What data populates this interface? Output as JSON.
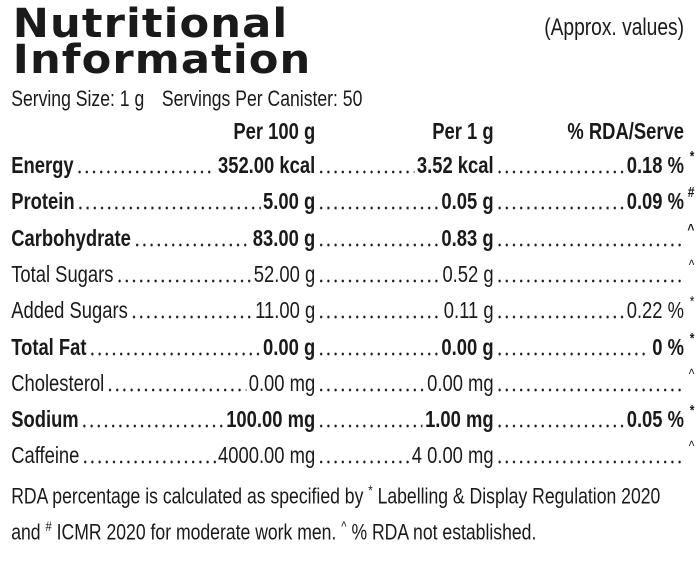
{
  "header": {
    "title_line1": "Nutritional",
    "title_line2": "Information",
    "note": "(Approx. values)"
  },
  "serving": {
    "size": "Serving Size: 1 g",
    "per_canister": "Servings Per Canister: 50"
  },
  "table": {
    "columns": [
      "Per 100 g",
      "Per 1 g",
      "% RDA/Serve"
    ],
    "rows": [
      {
        "name": "Energy",
        "bold": true,
        "per100": "352.00 kcal",
        "per1": "3.52 kcal",
        "rda": "0.18 %",
        "mark": "*"
      },
      {
        "name": "Protein",
        "bold": true,
        "per100": "5.00 g",
        "per1": "0.05 g",
        "rda": "0.09 %",
        "mark": "#"
      },
      {
        "name": "Carbohydrate",
        "bold": true,
        "per100": "83.00 g",
        "per1": "0.83 g",
        "mark": "^"
      },
      {
        "name": "Total Sugars",
        "bold": false,
        "per100": "52.00 g",
        "per1": "0.52 g",
        "mark": "^"
      },
      {
        "name": "Added Sugars",
        "bold": false,
        "per100": "11.00 g",
        "per1": "0.11 g",
        "rda": "0.22 %",
        "mark": "*"
      },
      {
        "name": "Total Fat",
        "bold": true,
        "per100": "0.00 g",
        "per1": "0.00 g",
        "rda": "0 %",
        "mark": "*"
      },
      {
        "name": "Cholesterol",
        "bold": false,
        "per100": "0.00 mg",
        "per1": "0.00 mg",
        "mark": "^"
      },
      {
        "name": "Sodium",
        "bold": true,
        "per100": "100.00 mg",
        "per1": "1.00 mg",
        "rda": "0.05 %",
        "mark": "*"
      },
      {
        "name": "Caffeine",
        "bold": false,
        "per100": "4000.00 mg",
        "per1": "4 0.00 mg",
        "mark": "^"
      }
    ]
  },
  "footer": [
    "RDA percentage is calculated as specified by",
    "*",
    "Labelling & Display Regulation 2020",
    "and",
    "#",
    "ICMR 2020 for moderate work men.",
    "^",
    "% RDA not established."
  ]
}
